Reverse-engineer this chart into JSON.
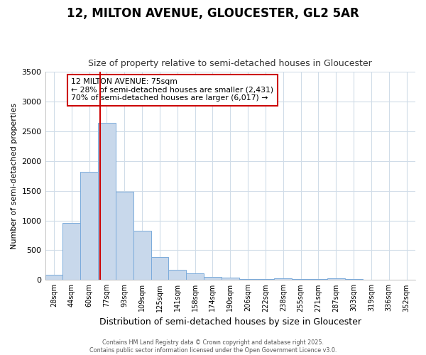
{
  "title1": "12, MILTON AVENUE, GLOUCESTER, GL2 5AR",
  "title2": "Size of property relative to semi-detached houses in Gloucester",
  "xlabel": "Distribution of semi-detached houses by size in Gloucester",
  "ylabel": "Number of semi-detached properties",
  "categories": [
    "28sqm",
    "44sqm",
    "60sqm",
    "77sqm",
    "93sqm",
    "109sqm",
    "125sqm",
    "141sqm",
    "158sqm",
    "174sqm",
    "190sqm",
    "206sqm",
    "222sqm",
    "238sqm",
    "255sqm",
    "271sqm",
    "287sqm",
    "303sqm",
    "319sqm",
    "336sqm",
    "352sqm"
  ],
  "values": [
    90,
    960,
    1820,
    2640,
    1490,
    830,
    380,
    175,
    115,
    55,
    40,
    20,
    15,
    25,
    20,
    15,
    25,
    15,
    5,
    5,
    5
  ],
  "bar_color": "#c8d8eb",
  "bar_edge_color": "#7aabdb",
  "vline_color": "#cc0000",
  "vline_pos": 2.6,
  "annotation_text": "12 MILTON AVENUE: 75sqm\n← 28% of semi-detached houses are smaller (2,431)\n70% of semi-detached houses are larger (6,017) →",
  "annotation_box_color": "#ffffff",
  "annotation_box_edge_color": "#cc0000",
  "footer": "Contains HM Land Registry data © Crown copyright and database right 2025.\nContains public sector information licensed under the Open Government Licence v3.0.",
  "background_color": "#ffffff",
  "grid_color": "#d0dce8",
  "ylim": [
    0,
    3500
  ],
  "yticks": [
    0,
    500,
    1000,
    1500,
    2000,
    2500,
    3000,
    3500
  ],
  "title1_fontsize": 12,
  "title2_fontsize": 9,
  "ylabel_fontsize": 8,
  "xlabel_fontsize": 9
}
